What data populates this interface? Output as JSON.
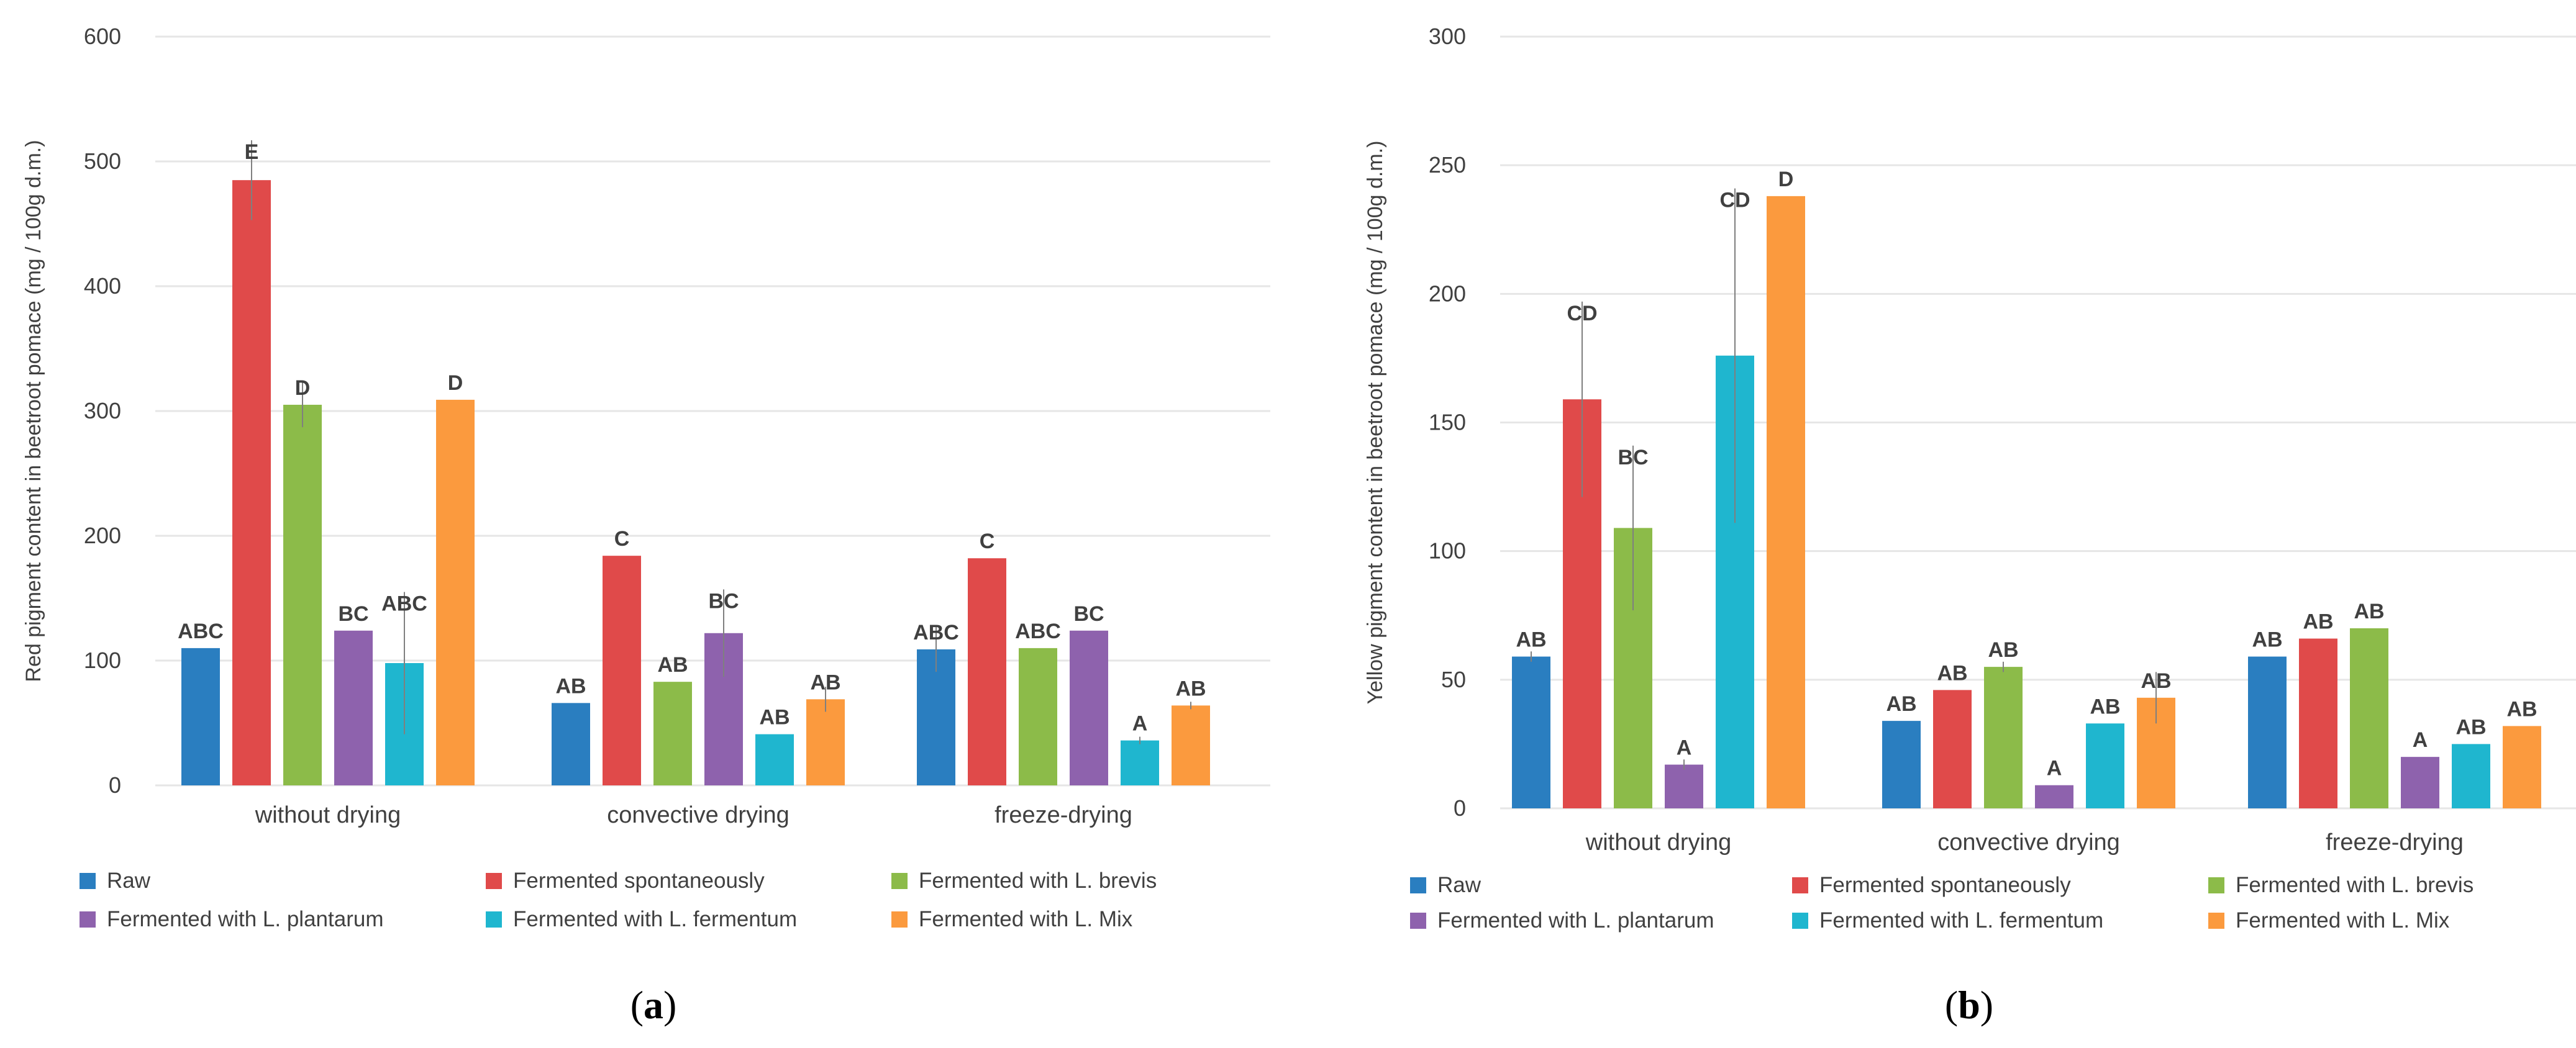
{
  "colors": {
    "series": [
      "#2a7ec0",
      "#e04a4a",
      "#8cbb49",
      "#8e62ad",
      "#1fb6cf",
      "#fb9a3e"
    ],
    "axis_text": "#404040",
    "grid": "#e6e6e6",
    "error_bar": "#7f7f7f",
    "panel_label": "#000000"
  },
  "chart_data": [
    {
      "panel": "a",
      "panel_label": "(a)",
      "type": "bar",
      "ylabel": "Red pigment content in beetroot pomace (mg / 100g d.m.)",
      "xlabel": "",
      "ylim": [
        0,
        600
      ],
      "yticks": [
        0,
        100,
        200,
        300,
        400,
        500,
        600
      ],
      "grid": true,
      "legend_position": "bottom",
      "categories": [
        "without drying",
        "convective drying",
        "freeze-drying"
      ],
      "series": [
        {
          "name": "Raw",
          "values": [
            110,
            66,
            109
          ],
          "errors": [
            0,
            0,
            18
          ],
          "letters": [
            "ABC",
            "AB",
            "ABC"
          ]
        },
        {
          "name": "Fermented spontaneously",
          "values": [
            485,
            184,
            182
          ],
          "errors": [
            32,
            0,
            0
          ],
          "letters": [
            "E",
            "C",
            "C"
          ]
        },
        {
          "name": "Fermented with L. brevis",
          "values": [
            305,
            83,
            110
          ],
          "errors": [
            18,
            0,
            0
          ],
          "letters": [
            "D",
            "AB",
            "ABC"
          ]
        },
        {
          "name": "Fermented with L. plantarum",
          "values": [
            124,
            122,
            124
          ],
          "errors": [
            0,
            35,
            0
          ],
          "letters": [
            "BC",
            "BC",
            "BC"
          ]
        },
        {
          "name": "Fermented with L. fermentum",
          "values": [
            98,
            41,
            36
          ],
          "errors": [
            57,
            0,
            3
          ],
          "letters": [
            "ABC",
            "AB",
            "A"
          ]
        },
        {
          "name": "Fermented with L. Mix",
          "values": [
            309,
            69,
            64
          ],
          "errors": [
            0,
            10,
            3
          ],
          "letters": [
            "D",
            "AB",
            "AB"
          ]
        }
      ]
    },
    {
      "panel": "b",
      "panel_label": "(b)",
      "type": "bar",
      "ylabel": "Yellow pigment content in beetroot pomace (mg / 100g d.m.)",
      "xlabel": "",
      "ylim": [
        0,
        300
      ],
      "yticks": [
        0,
        50,
        100,
        150,
        200,
        250,
        300
      ],
      "grid": true,
      "legend_position": "bottom",
      "categories": [
        "without drying",
        "convective drying",
        "freeze-drying"
      ],
      "series": [
        {
          "name": "Raw",
          "values": [
            59,
            34,
            59
          ],
          "errors": [
            2,
            0,
            0
          ],
          "letters": [
            "AB",
            "AB",
            "AB"
          ]
        },
        {
          "name": "Fermented spontaneously",
          "values": [
            159,
            46,
            66
          ],
          "errors": [
            38,
            0,
            0
          ],
          "letters": [
            "CD",
            "AB",
            "AB"
          ]
        },
        {
          "name": "Fermented with L. brevis",
          "values": [
            109,
            55,
            70
          ],
          "errors": [
            32,
            2,
            0
          ],
          "letters": [
            "BC",
            "AB",
            "AB"
          ]
        },
        {
          "name": "Fermented with L. plantarum",
          "values": [
            17,
            9,
            20
          ],
          "errors": [
            2,
            0,
            0
          ],
          "letters": [
            "A",
            "A",
            "A"
          ]
        },
        {
          "name": "Fermented with L. fermentum",
          "values": [
            176,
            33,
            25
          ],
          "errors": [
            65,
            0,
            0
          ],
          "letters": [
            "CD",
            "AB",
            "AB"
          ]
        },
        {
          "name": "Fermented with L. Mix",
          "values": [
            238,
            43,
            32
          ],
          "errors": [
            0,
            10,
            0
          ],
          "letters": [
            "D",
            "AB",
            "AB"
          ]
        }
      ]
    }
  ]
}
